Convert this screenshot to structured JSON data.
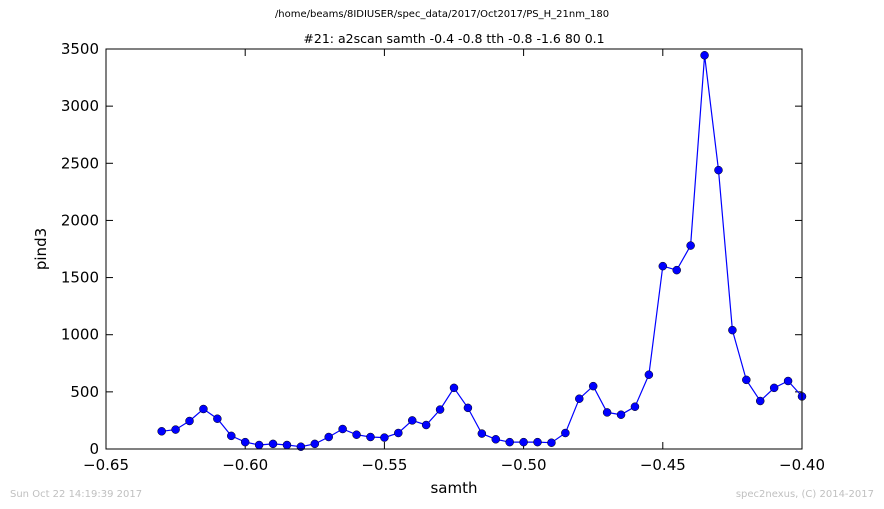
{
  "suptitle": "/home/beams/8IDIUSER/spec_data/2017/Oct2017/PS_H_21nm_180",
  "footer": {
    "timestamp": "Sun Oct 22 14:19:39 2017",
    "credit": "spec2nexus, (C) 2014-2017"
  },
  "chart_data": {
    "type": "line",
    "title": "#21: a2scan  samth -0.4 -0.8  tth -0.8 -1.6  80 0.1",
    "xlabel": "samth",
    "ylabel": "pind3",
    "xlim": [
      -0.65,
      -0.4
    ],
    "ylim": [
      0,
      3500
    ],
    "xticks": [
      -0.65,
      -0.6,
      -0.55,
      -0.5,
      -0.45,
      -0.4
    ],
    "xtick_labels": [
      "−0.65",
      "−0.60",
      "−0.55",
      "−0.50",
      "−0.45",
      "−0.40"
    ],
    "yticks": [
      0,
      500,
      1000,
      1500,
      2000,
      2500,
      3000,
      3500
    ],
    "ytick_labels": [
      "0",
      "500",
      "1000",
      "1500",
      "2000",
      "2500",
      "3000",
      "3500"
    ],
    "grid": false,
    "color": "#0000ff",
    "marker": "circle",
    "x": [
      -0.63,
      -0.625,
      -0.62,
      -0.615,
      -0.61,
      -0.605,
      -0.6,
      -0.595,
      -0.59,
      -0.585,
      -0.58,
      -0.575,
      -0.57,
      -0.565,
      -0.56,
      -0.555,
      -0.55,
      -0.545,
      -0.54,
      -0.535,
      -0.53,
      -0.525,
      -0.52,
      -0.515,
      -0.51,
      -0.505,
      -0.5,
      -0.495,
      -0.49,
      -0.485,
      -0.48,
      -0.475,
      -0.47,
      -0.465,
      -0.46,
      -0.455,
      -0.45,
      -0.445,
      -0.44,
      -0.435,
      -0.43,
      -0.425,
      -0.42,
      -0.415,
      -0.41,
      -0.405,
      -0.4
    ],
    "y": [
      155,
      170,
      245,
      350,
      265,
      115,
      60,
      35,
      45,
      35,
      20,
      45,
      105,
      175,
      125,
      105,
      100,
      140,
      250,
      210,
      345,
      535,
      360,
      135,
      85,
      60,
      60,
      60,
      55,
      140,
      440,
      550,
      320,
      300,
      370,
      650,
      1600,
      1565,
      1780,
      3445,
      2440,
      1040,
      605,
      420,
      535,
      595,
      460
    ]
  }
}
